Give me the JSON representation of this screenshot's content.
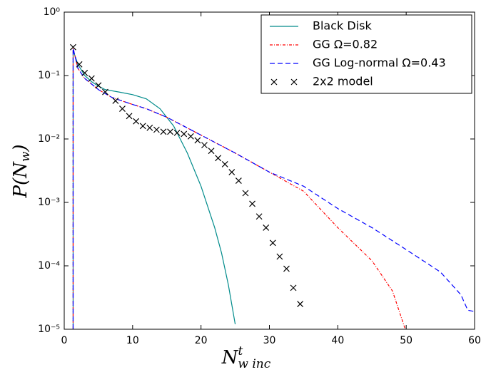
{
  "chart_data": {
    "type": "line",
    "x_label": {
      "base": "N",
      "sup": "t",
      "sub": "w inc"
    },
    "y_label": {
      "base": "P(N",
      "sub": "w",
      "end": ")"
    },
    "xlim": [
      0,
      60
    ],
    "xticks": [
      0,
      10,
      20,
      30,
      40,
      50,
      60
    ],
    "ylim": [
      1e-05,
      1
    ],
    "log_y": true,
    "yticks": [
      {
        "value": 1e-05,
        "label": "10⁻⁵"
      },
      {
        "value": 0.0001,
        "label": "10⁻⁴"
      },
      {
        "value": 0.001,
        "label": "10⁻³"
      },
      {
        "value": 0.01,
        "label": "10⁻²"
      },
      {
        "value": 0.1,
        "label": "10⁻¹"
      },
      {
        "value": 1,
        "label": "10⁰"
      }
    ],
    "legend": "upper right",
    "series": [
      {
        "name": "Black Disk",
        "color": "#008b8b",
        "linestyle": "solid",
        "x": [
          1.3,
          1.3,
          2,
          3,
          4,
          5,
          6,
          8,
          10,
          12,
          14,
          16,
          18,
          20,
          22,
          23,
          24,
          25
        ],
        "values": [
          1e-05,
          0.25,
          0.15,
          0.1,
          0.08,
          0.068,
          0.06,
          0.055,
          0.05,
          0.043,
          0.03,
          0.016,
          0.006,
          0.0018,
          0.0004,
          0.00016,
          5e-05,
          1.2e-05
        ]
      },
      {
        "name": "GG Ω=0.82",
        "color": "#ff0000",
        "linestyle": "dashdot",
        "x": [
          1.3,
          1.3,
          2,
          3,
          5,
          7,
          10,
          12,
          15,
          20,
          25,
          30,
          35,
          40,
          45,
          48,
          50
        ],
        "values": [
          1e-05,
          0.27,
          0.13,
          0.09,
          0.06,
          0.045,
          0.035,
          0.03,
          0.022,
          0.0115,
          0.006,
          0.003,
          0.0015,
          0.0004,
          0.00012,
          4e-05,
          9e-06
        ]
      },
      {
        "name": "GG Log-normal Ω=0.43",
        "color": "#0000ff",
        "linestyle": "dashed",
        "x": [
          1.3,
          1.3,
          2,
          3,
          5,
          7,
          10,
          12,
          15,
          20,
          25,
          30,
          35,
          40,
          45,
          50,
          55,
          58,
          59,
          60
        ],
        "values": [
          1e-05,
          0.27,
          0.13,
          0.09,
          0.06,
          0.045,
          0.035,
          0.03,
          0.022,
          0.0115,
          0.006,
          0.003,
          0.0018,
          0.0008,
          0.0004,
          0.00018,
          8e-05,
          3.5e-05,
          2e-05,
          1.9e-05
        ]
      },
      {
        "name": "2x2 model",
        "color": "#000000",
        "linestyle": "none",
        "marker": "x",
        "x": [
          1.3,
          2.2,
          3,
          4,
          5,
          6,
          7.5,
          8.5,
          9.5,
          10.5,
          11.5,
          12.5,
          13.5,
          14.5,
          15.5,
          16.5,
          17.5,
          18.5,
          19.5,
          20.5,
          21.5,
          22.5,
          23.5,
          24.5,
          25.5,
          26.5,
          27.5,
          28.5,
          29.5,
          30.5,
          31.5,
          32.5,
          33.5,
          34.5
        ],
        "values": [
          0.28,
          0.15,
          0.11,
          0.09,
          0.07,
          0.055,
          0.04,
          0.03,
          0.023,
          0.019,
          0.016,
          0.015,
          0.014,
          0.013,
          0.013,
          0.0125,
          0.012,
          0.011,
          0.0095,
          0.008,
          0.0065,
          0.005,
          0.004,
          0.003,
          0.0022,
          0.0014,
          0.00095,
          0.0006,
          0.0004,
          0.00023,
          0.00014,
          9e-05,
          4.5e-05,
          2.5e-05
        ]
      }
    ]
  }
}
